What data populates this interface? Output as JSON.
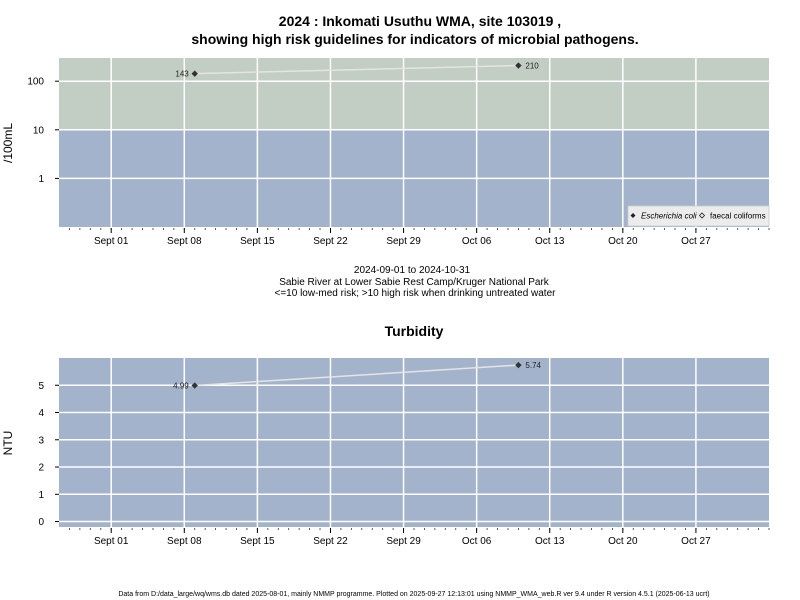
{
  "figure": {
    "title_line1": "2024 : Inkomati Usuthu WMA, site 103019 ,",
    "title_line2": "showing high risk guidelines for indicators of microbial pathogens.",
    "subtitle_line1": "2024-09-01 to 2024-10-31",
    "subtitle_line2": "Sabie River at Lower Sabie Rest Camp/Kruger National Park",
    "subtitle_line3": "<=10 low-med risk; >10 high risk when drinking untreated water",
    "footer": "Data from D:/data_large/wq/wms.db dated 2025-08-01, mainly NMMP programme. Plotted on 2025-09-27 12:13:01 using NMMP_WMA_web.R ver 9.4 under R version 4.5.1 (2025-06-13 ucrt)"
  },
  "colors": {
    "panel_blue": "#a3b3cb",
    "high_risk_band": "#c2cdc3",
    "grid": "#ffffff",
    "series_line": "#e4e4e4",
    "marker": "#333333"
  },
  "chart_data": [
    {
      "type": "line",
      "title": "",
      "xlabel": "",
      "ylabel": "/100mL",
      "y_scale": "log",
      "xlim": [
        "2024-08-27",
        "2024-11-03"
      ],
      "ylim": [
        0.1,
        300
      ],
      "x_tick_labels": [
        "Sept 01",
        "Sept 08",
        "Sept 15",
        "Sept 22",
        "Sept 29",
        "Oct 06",
        "Oct 13",
        "Oct 20",
        "Oct 27"
      ],
      "x_ticks": [
        "2024-09-01",
        "2024-09-08",
        "2024-09-15",
        "2024-09-22",
        "2024-09-29",
        "2024-10-06",
        "2024-10-13",
        "2024-10-20",
        "2024-10-27"
      ],
      "y_ticks": [
        1,
        10,
        100
      ],
      "y_tick_labels": [
        "1",
        "10",
        "100"
      ],
      "guideline_bands": [
        {
          "from": 0.1,
          "to": 10,
          "color": "#a3b3cb"
        },
        {
          "from": 10,
          "to": 300,
          "color": "#c2cdc3"
        }
      ],
      "grid": true,
      "legend": {
        "position": "bottom-right",
        "entries": [
          {
            "label": "Escherichia coli",
            "marker": "filled-diamond",
            "italic": true
          },
          {
            "label": "faecal coliforms",
            "marker": "open-diamond",
            "italic": false
          }
        ]
      },
      "series": [
        {
          "name": "Escherichia coli",
          "points": [
            {
              "x": "2024-09-09",
              "y": 143,
              "label": "143"
            },
            {
              "x": "2024-10-10",
              "y": 210,
              "label": "210"
            }
          ]
        }
      ]
    },
    {
      "type": "line",
      "title": "Turbidity",
      "xlabel": "",
      "ylabel": "NTU",
      "y_scale": "linear",
      "xlim": [
        "2024-08-27",
        "2024-11-03"
      ],
      "ylim": [
        -0.2,
        6.0
      ],
      "x_tick_labels": [
        "Sept 01",
        "Sept 08",
        "Sept 15",
        "Sept 22",
        "Sept 29",
        "Oct 06",
        "Oct 13",
        "Oct 20",
        "Oct 27"
      ],
      "x_ticks": [
        "2024-09-01",
        "2024-09-08",
        "2024-09-15",
        "2024-09-22",
        "2024-09-29",
        "2024-10-06",
        "2024-10-13",
        "2024-10-20",
        "2024-10-27"
      ],
      "y_ticks": [
        0,
        1,
        2,
        3,
        4,
        5
      ],
      "y_tick_labels": [
        "0",
        "1",
        "2",
        "3",
        "4",
        "5"
      ],
      "grid": true,
      "series": [
        {
          "name": "",
          "points": [
            {
              "x": "2024-09-09",
              "y": 4.99,
              "label": "4.99"
            },
            {
              "x": "2024-10-10",
              "y": 5.74,
              "label": "5.74"
            }
          ]
        }
      ]
    }
  ]
}
